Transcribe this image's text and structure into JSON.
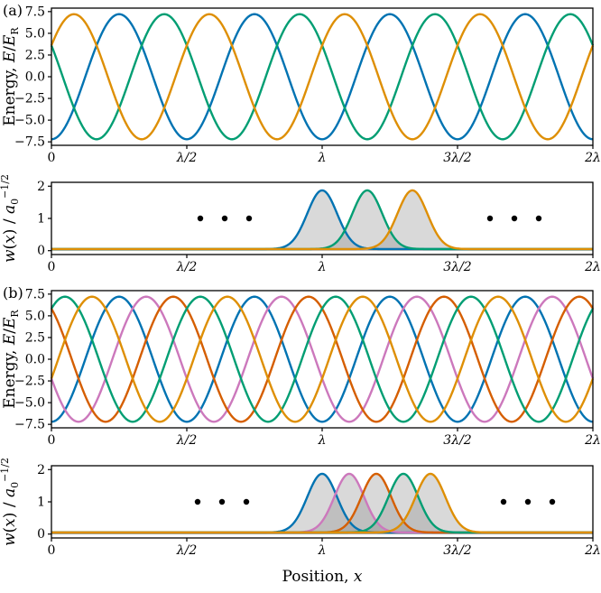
{
  "figure": {
    "panel_a_label": "(a)",
    "panel_b_label": "(b)",
    "xlabel_segments": [
      {
        "t": "Position, "
      },
      {
        "t": "x",
        "i": true
      }
    ],
    "energy_ylabel_segments": [
      {
        "t": "Energy, "
      },
      {
        "t": "E",
        "i": true
      },
      {
        "t": "/"
      },
      {
        "t": "E",
        "i": true
      },
      {
        "t": "R",
        "sub": true
      }
    ],
    "wannier_ylabel_segments": [
      {
        "t": "w",
        "i": true
      },
      {
        "t": "("
      },
      {
        "t": "x",
        "i": true
      },
      {
        "t": ") / "
      },
      {
        "t": "a",
        "i": true
      },
      {
        "t": "0",
        "sub": true
      },
      {
        "t": "−1/2",
        "sup": true
      }
    ]
  },
  "palette": {
    "blue": "#0173b2",
    "green": "#029e73",
    "orange": "#de8f05",
    "vermillion": "#d55e00",
    "pink": "#cc78bc",
    "dot_black": "#000000",
    "fill_gray": "#8a8a8a"
  },
  "chart_data": [
    {
      "id": "a-energy",
      "type": "line",
      "description": "Three interleaved optical-lattice potentials, period lambda/2, phase-shifted by lambda/6",
      "curve_model": "y = -amplitude * cos(2*pi*(x - shift)/period), x in units of lambda",
      "ylabel": "Energy, E/E_R",
      "xlim": [
        0,
        2
      ],
      "ylim": [
        -7.9,
        7.9
      ],
      "xticks": [
        0,
        0.5,
        1,
        1.5,
        2
      ],
      "xtick_labels": [
        "0",
        "λ/2",
        "λ",
        "3λ/2",
        "2λ"
      ],
      "yticks": [
        7.5,
        5.0,
        2.5,
        0.0,
        -2.5,
        -5.0,
        -7.5
      ],
      "ytick_labels": [
        "7.5",
        "5.0",
        "2.5",
        "0.0",
        "−2.5",
        "−5.0",
        "−7.5"
      ],
      "grid": false,
      "legend": false,
      "series": [
        {
          "name": "lattice-1",
          "color": "#0173b2",
          "amplitude": 7.2,
          "period": 0.5,
          "shift": 0
        },
        {
          "name": "lattice-2",
          "color": "#029e73",
          "amplitude": 7.2,
          "period": 0.5,
          "shift": 0.1667
        },
        {
          "name": "lattice-3",
          "color": "#de8f05",
          "amplitude": 7.2,
          "period": 0.5,
          "shift": 0.3333
        }
      ]
    },
    {
      "id": "a-wannier",
      "type": "line",
      "description": "Wannier functions localized at adjacent lattice sites x = lambda, 7lambda/6, 4lambda/3; gray shaded",
      "curve_model": "y = baseline + amplitude * exp(-(x-center)^2/(2*sigma^2)), x in units of lambda",
      "ylabel": "w(x) / a_0^{-1/2}",
      "xlim": [
        0,
        2
      ],
      "ylim": [
        -0.12,
        2.12
      ],
      "xticks": [
        0,
        0.5,
        1,
        1.5,
        2
      ],
      "xtick_labels": [
        "0",
        "λ/2",
        "λ",
        "3λ/2",
        "2λ"
      ],
      "yticks": [
        0,
        1,
        2
      ],
      "ytick_labels": [
        "0",
        "1",
        "2"
      ],
      "grid": false,
      "legend": false,
      "baseline": 0.05,
      "fill_color": "#8a8a8a",
      "fill_opacity": 0.32,
      "series": [
        {
          "name": "wannier-1",
          "color": "#0173b2",
          "center": 1.0,
          "amplitude": 1.82,
          "sigma": 0.055
        },
        {
          "name": "wannier-2",
          "color": "#029e73",
          "center": 1.1667,
          "amplitude": 1.82,
          "sigma": 0.055
        },
        {
          "name": "wannier-3",
          "color": "#de8f05",
          "center": 1.3333,
          "amplitude": 1.82,
          "sigma": 0.055
        }
      ],
      "ellipsis_dots": {
        "y": 1.0,
        "x_left": [
          0.55,
          0.64,
          0.73
        ],
        "x_right": [
          1.62,
          1.71,
          1.8
        ]
      }
    },
    {
      "id": "b-energy",
      "type": "line",
      "description": "Five interleaved optical-lattice potentials, period lambda/2, phase-shifted by lambda/10",
      "curve_model": "y = -amplitude * cos(2*pi*(x - shift)/period), x in units of lambda",
      "ylabel": "Energy, E/E_R",
      "xlim": [
        0,
        2
      ],
      "ylim": [
        -7.9,
        7.9
      ],
      "xticks": [
        0,
        0.5,
        1,
        1.5,
        2
      ],
      "xtick_labels": [
        "0",
        "λ/2",
        "λ",
        "3λ/2",
        "2λ"
      ],
      "yticks": [
        7.5,
        5.0,
        2.5,
        0.0,
        -2.5,
        -5.0,
        -7.5
      ],
      "ytick_labels": [
        "7.5",
        "5.0",
        "2.5",
        "0.0",
        "−2.5",
        "−5.0",
        "−7.5"
      ],
      "grid": false,
      "legend": false,
      "series": [
        {
          "name": "lattice-1",
          "color": "#0173b2",
          "amplitude": 7.2,
          "period": 0.5,
          "shift": 0
        },
        {
          "name": "lattice-2",
          "color": "#cc78bc",
          "amplitude": 7.2,
          "period": 0.5,
          "shift": 0.1
        },
        {
          "name": "lattice-3",
          "color": "#d55e00",
          "amplitude": 7.2,
          "period": 0.5,
          "shift": 0.2
        },
        {
          "name": "lattice-4",
          "color": "#029e73",
          "amplitude": 7.2,
          "period": 0.5,
          "shift": 0.3
        },
        {
          "name": "lattice-5",
          "color": "#de8f05",
          "amplitude": 7.2,
          "period": 0.5,
          "shift": 0.4
        }
      ]
    },
    {
      "id": "b-wannier",
      "type": "line",
      "description": "Wannier functions localized at adjacent lattice sites x = 1.0, 1.1, 1.2, 1.3, 1.4 lambda; gray shaded",
      "curve_model": "y = baseline + amplitude * exp(-(x-center)^2/(2*sigma^2)), x in units of lambda",
      "ylabel": "w(x) / a_0^{-1/2}",
      "xlim": [
        0,
        2
      ],
      "ylim": [
        -0.12,
        2.12
      ],
      "xticks": [
        0,
        0.5,
        1,
        1.5,
        2
      ],
      "xtick_labels": [
        "0",
        "λ/2",
        "λ",
        "3λ/2",
        "2λ"
      ],
      "yticks": [
        0,
        1,
        2
      ],
      "ytick_labels": [
        "0",
        "1",
        "2"
      ],
      "grid": false,
      "legend": false,
      "baseline": 0.05,
      "fill_color": "#8a8a8a",
      "fill_opacity": 0.32,
      "series": [
        {
          "name": "wannier-1",
          "color": "#0173b2",
          "center": 1.0,
          "amplitude": 1.82,
          "sigma": 0.055
        },
        {
          "name": "wannier-2",
          "color": "#cc78bc",
          "center": 1.1,
          "amplitude": 1.82,
          "sigma": 0.055
        },
        {
          "name": "wannier-3",
          "color": "#d55e00",
          "center": 1.2,
          "amplitude": 1.82,
          "sigma": 0.055
        },
        {
          "name": "wannier-4",
          "color": "#029e73",
          "center": 1.3,
          "amplitude": 1.82,
          "sigma": 0.055
        },
        {
          "name": "wannier-5",
          "color": "#de8f05",
          "center": 1.4,
          "amplitude": 1.82,
          "sigma": 0.055
        }
      ],
      "ellipsis_dots": {
        "y": 1.0,
        "x_left": [
          0.54,
          0.63,
          0.72
        ],
        "x_right": [
          1.67,
          1.76,
          1.85
        ]
      }
    }
  ]
}
